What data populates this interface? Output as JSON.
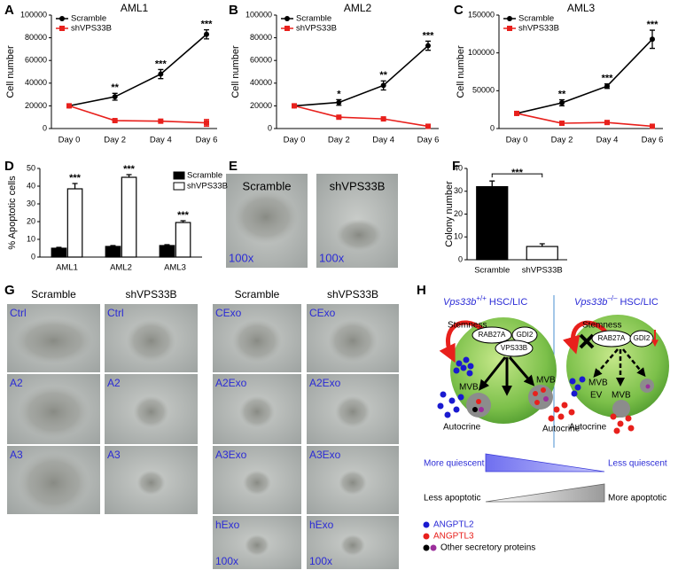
{
  "chart_data": [
    {
      "type": "line",
      "panel": "A",
      "title": "AML1",
      "ylabel": "Cell number",
      "categories": [
        "Day 0",
        "Day 2",
        "Day 4",
        "Day 6"
      ],
      "series": [
        {
          "name": "Scramble",
          "color": "#000000",
          "marker": "circle",
          "values": [
            20000,
            28000,
            48000,
            83000
          ],
          "errors": [
            0,
            3000,
            4000,
            4000
          ]
        },
        {
          "name": "shVPS33B",
          "color": "#e8201c",
          "marker": "square",
          "values": [
            20000,
            7000,
            6500,
            5000
          ],
          "errors": [
            0,
            500,
            500,
            3000
          ]
        }
      ],
      "annotations": [
        null,
        "**",
        "***",
        "***"
      ],
      "ylim": [
        0,
        100000
      ],
      "yticks": [
        0,
        20000,
        40000,
        60000,
        80000,
        100000
      ]
    },
    {
      "type": "line",
      "panel": "B",
      "title": "AML2",
      "ylabel": "Cell number",
      "categories": [
        "Day 0",
        "Day 2",
        "Day 4",
        "Day 6"
      ],
      "series": [
        {
          "name": "Scramble",
          "color": "#000000",
          "marker": "circle",
          "values": [
            20000,
            23000,
            38000,
            73000
          ],
          "errors": [
            0,
            2500,
            4000,
            4000
          ]
        },
        {
          "name": "shVPS33B",
          "color": "#e8201c",
          "marker": "square",
          "values": [
            20000,
            10000,
            8500,
            2000
          ],
          "errors": [
            0,
            500,
            500,
            1000
          ]
        }
      ],
      "annotations": [
        null,
        "*",
        "**",
        "***"
      ],
      "ylim": [
        0,
        100000
      ],
      "yticks": [
        0,
        20000,
        40000,
        60000,
        80000,
        100000
      ]
    },
    {
      "type": "line",
      "panel": "C",
      "title": "AML3",
      "ylabel": "Cell number",
      "categories": [
        "Day 0",
        "Day 2",
        "Day 4",
        "Day 6"
      ],
      "series": [
        {
          "name": "Scramble",
          "color": "#000000",
          "marker": "circle",
          "values": [
            20000,
            34000,
            56000,
            118000
          ],
          "errors": [
            0,
            4000,
            3000,
            12000
          ]
        },
        {
          "name": "shVPS33B",
          "color": "#e8201c",
          "marker": "square",
          "values": [
            20000,
            7000,
            8000,
            3000
          ],
          "errors": [
            0,
            1000,
            1000,
            1000
          ]
        }
      ],
      "annotations": [
        null,
        "**",
        "***",
        "***"
      ],
      "ylim": [
        0,
        150000
      ],
      "yticks": [
        0,
        50000,
        100000,
        150000
      ]
    },
    {
      "type": "bar",
      "panel": "D",
      "ylabel": "% Apoptotic cells",
      "categories": [
        "AML1",
        "AML2",
        "AML3"
      ],
      "series": [
        {
          "name": "Scramble",
          "color": "#000000",
          "values": [
            5,
            6,
            6.5
          ],
          "errors": [
            0.5,
            0.5,
            0.5
          ]
        },
        {
          "name": "shVPS33B",
          "color": "#ffffff",
          "values": [
            38.5,
            45,
            19.5
          ],
          "errors": [
            3,
            1.5,
            1
          ]
        }
      ],
      "annotations": [
        "***",
        "***",
        "***"
      ],
      "ylim": [
        0,
        50
      ],
      "yticks": [
        0,
        10,
        20,
        30,
        40,
        50
      ]
    },
    {
      "type": "bar",
      "panel": "F",
      "ylabel": "Colony number",
      "categories": [
        "Scramble",
        "shVPS33B"
      ],
      "values": [
        32,
        5.8
      ],
      "errors": [
        2.5,
        1.2
      ],
      "colors": [
        "#000000",
        "#ffffff"
      ],
      "annotation": "***",
      "ylim": [
        0,
        40
      ],
      "yticks": [
        0,
        10,
        20,
        30,
        40
      ]
    }
  ],
  "panel_E": {
    "letter": "E",
    "labels": [
      "Scramble",
      "shVPS33B"
    ],
    "magnification": [
      "100x",
      "100x"
    ]
  },
  "panel_G": {
    "letter": "G",
    "columns": [
      "Scramble",
      "shVPS33B",
      "Scramble",
      "shVPS33B"
    ],
    "left_rows": [
      [
        "Ctrl",
        "Ctrl"
      ],
      [
        "A2",
        "A2"
      ],
      [
        "A3",
        "A3"
      ]
    ],
    "right_rows": [
      [
        "CExo",
        "CExo"
      ],
      [
        "A2Exo",
        "A2Exo"
      ],
      [
        "A3Exo",
        "A3Exo"
      ],
      [
        "hExo",
        "hExo"
      ]
    ],
    "magnification": [
      "100x",
      "100x"
    ]
  },
  "panel_H": {
    "letter": "H",
    "left": {
      "gene": "Vps33b",
      "genotype": "+/+",
      "suffix": "HSC/LIC",
      "stemness": "Stemness",
      "proteins": [
        "RAB27A",
        "GDI2",
        "VPS33B"
      ],
      "mvb": [
        "MVB",
        "MVB"
      ],
      "autocrine": [
        "Autocrine",
        "Autocrine"
      ]
    },
    "right": {
      "gene": "Vps33b",
      "genotype": "–/–",
      "suffix": "HSC/LIC",
      "stemness": "Stemness",
      "proteins": [
        "RAB27A",
        "GDI2"
      ],
      "mvb": [
        "MVB",
        "MVB"
      ],
      "ev": "EV",
      "autocrine": "Autocrine"
    },
    "quiescence": [
      "More quiescent",
      "Less quiescent"
    ],
    "apoptosis": [
      "Less apoptotic",
      "More apoptotic"
    ],
    "legend": [
      "ANGPTL2",
      "ANGPTL3",
      "Other secretory proteins"
    ]
  }
}
